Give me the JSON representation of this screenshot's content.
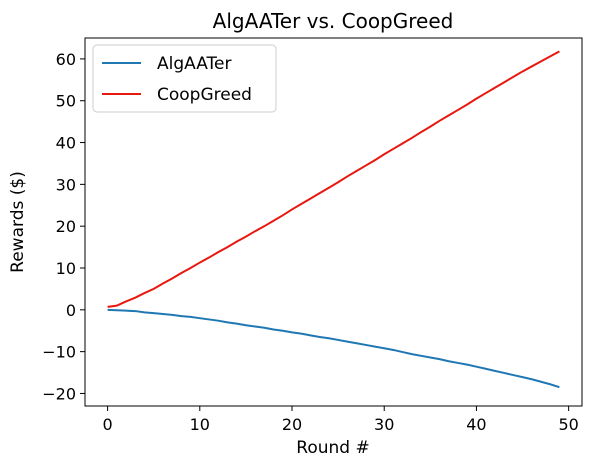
{
  "chart_data": {
    "type": "line",
    "title": "AlgAATer vs. CoopGreed",
    "xlabel": "Round #",
    "ylabel": "Rewards ($)",
    "xlim": [
      -2.45,
      51.45
    ],
    "ylim": [
      -23.0,
      65.0
    ],
    "xticks": [
      0,
      10,
      20,
      30,
      40,
      50
    ],
    "yticks": [
      -20,
      -10,
      0,
      10,
      20,
      30,
      40,
      50,
      60
    ],
    "xtick_labels": [
      "0",
      "10",
      "20",
      "30",
      "40",
      "50"
    ],
    "ytick_labels": [
      "−20",
      "−10",
      "0",
      "10",
      "20",
      "30",
      "40",
      "50",
      "60"
    ],
    "grid": false,
    "legend_position": "top-left",
    "x": [
      0,
      1,
      2,
      3,
      4,
      5,
      6,
      7,
      8,
      9,
      10,
      11,
      12,
      13,
      14,
      15,
      16,
      17,
      18,
      19,
      20,
      21,
      22,
      23,
      24,
      25,
      26,
      27,
      28,
      29,
      30,
      31,
      32,
      33,
      34,
      35,
      36,
      37,
      38,
      39,
      40,
      41,
      42,
      43,
      44,
      45,
      46,
      47,
      48,
      49
    ],
    "series": [
      {
        "name": "AlgAATer",
        "color": "#1f77b4",
        "values": [
          0.0,
          -0.1,
          -0.2,
          -0.3,
          -0.6,
          -0.8,
          -1.0,
          -1.2,
          -1.5,
          -1.7,
          -2.0,
          -2.3,
          -2.6,
          -3.0,
          -3.3,
          -3.7,
          -4.0,
          -4.3,
          -4.7,
          -5.0,
          -5.4,
          -5.7,
          -6.1,
          -6.5,
          -6.8,
          -7.2,
          -7.6,
          -8.0,
          -8.4,
          -8.8,
          -9.2,
          -9.6,
          -10.1,
          -10.6,
          -11.0,
          -11.4,
          -11.8,
          -12.3,
          -12.7,
          -13.1,
          -13.6,
          -14.1,
          -14.6,
          -15.1,
          -15.6,
          -16.1,
          -16.6,
          -17.2,
          -17.8,
          -18.5
        ]
      },
      {
        "name": "CoopGreed",
        "color": "#e8170f",
        "values": [
          0.7,
          1.0,
          2.0,
          2.9,
          4.0,
          5.0,
          6.3,
          7.5,
          8.8,
          10.0,
          11.3,
          12.5,
          13.8,
          15.0,
          16.3,
          17.5,
          18.8,
          20.0,
          21.3,
          22.6,
          24.0,
          25.3,
          26.6,
          27.9,
          29.2,
          30.5,
          31.9,
          33.2,
          34.5,
          35.8,
          37.2,
          38.5,
          39.8,
          41.1,
          42.5,
          43.8,
          45.2,
          46.5,
          47.8,
          49.1,
          50.5,
          51.8,
          53.1,
          54.4,
          55.7,
          57.0,
          58.2,
          59.4,
          60.6,
          61.8
        ]
      }
    ]
  }
}
